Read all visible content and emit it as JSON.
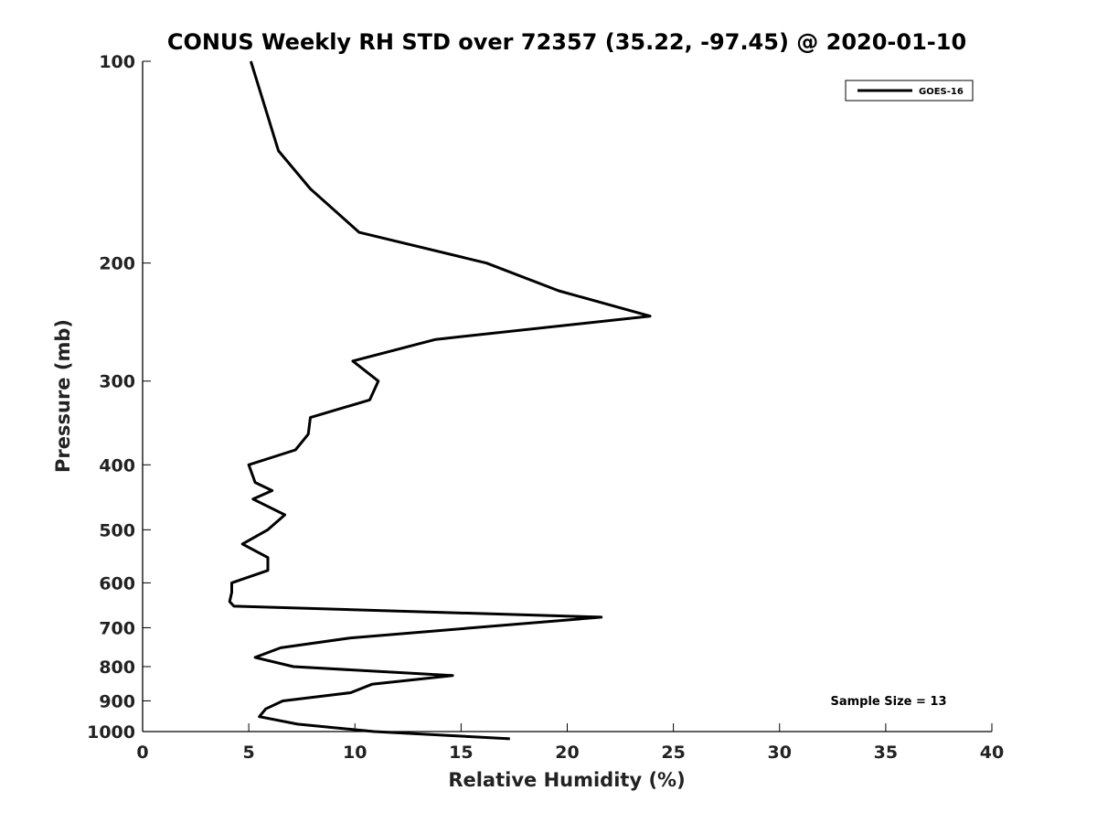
{
  "chart_data": {
    "type": "line",
    "title": "CONUS Weekly RH STD over 72357 (35.22, -97.45) @ 2020-01-10",
    "xlabel": "Relative Humidity (%)",
    "ylabel": "Pressure (mb)",
    "xlim": [
      0,
      40
    ],
    "ylim": [
      1000,
      100
    ],
    "yscale": "log",
    "xticks": [
      "0",
      "5",
      "10",
      "15",
      "20",
      "25",
      "30",
      "35",
      "40"
    ],
    "yticks": [
      "100",
      "200",
      "300",
      "400",
      "500",
      "600",
      "700",
      "800",
      "900",
      "1000"
    ],
    "grid": false,
    "legend": "top-right",
    "series": [
      {
        "name": "GOES-16",
        "color": "#000000",
        "x": [
          5.1,
          6.4,
          7.9,
          10.2,
          16.2,
          19.6,
          23.9,
          13.8,
          9.9,
          11.1,
          10.7,
          7.9,
          7.8,
          7.2,
          5.0,
          5.3,
          6.1,
          5.2,
          6.7,
          5.9,
          4.7,
          5.9,
          5.9,
          4.2,
          4.2,
          4.1,
          4.3,
          21.6,
          9.8,
          6.5,
          5.3,
          7.1,
          14.6,
          10.8,
          9.8,
          6.6,
          5.8,
          5.5,
          7.3,
          10.9,
          17.3
        ],
        "y": [
          100,
          136,
          155,
          180,
          200,
          220,
          240,
          260,
          280,
          300,
          320,
          340,
          360,
          380,
          400,
          425,
          437,
          450,
          475,
          500,
          525,
          550,
          575,
          600,
          620,
          640,
          650,
          675,
          725,
          750,
          775,
          800,
          825,
          850,
          875,
          900,
          925,
          950,
          975,
          1000,
          1025
        ]
      }
    ],
    "annotation": "Sample Size = 13"
  }
}
